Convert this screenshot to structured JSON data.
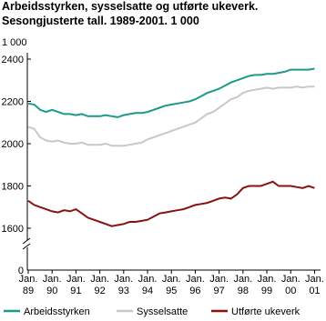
{
  "chart_data": {
    "type": "line",
    "title": "Arbeidsstyrken, sysselsatte og utførte ukeverk.",
    "subtitle": "Sesongjusterte tall. 1989-2001. 1 000",
    "y_unit": "1 000",
    "x": [
      "1989-01",
      "1989-04",
      "1989-07",
      "1989-10",
      "1990-01",
      "1990-04",
      "1990-07",
      "1990-10",
      "1991-01",
      "1991-04",
      "1991-07",
      "1991-10",
      "1992-01",
      "1992-04",
      "1992-07",
      "1992-10",
      "1993-01",
      "1993-04",
      "1993-07",
      "1993-10",
      "1994-01",
      "1994-04",
      "1994-07",
      "1994-10",
      "1995-01",
      "1995-04",
      "1995-07",
      "1995-10",
      "1996-01",
      "1996-04",
      "1996-07",
      "1996-10",
      "1997-01",
      "1997-04",
      "1997-07",
      "1997-10",
      "1998-01",
      "1998-04",
      "1998-07",
      "1998-10",
      "1999-01",
      "1999-04",
      "1999-07",
      "1999-10",
      "2000-01",
      "2000-04",
      "2000-07",
      "2000-10",
      "2001-01"
    ],
    "xlim": [
      "1989-01",
      "2001-04"
    ],
    "xticks": [
      {
        "value": "1989-01",
        "label": "Jan. 89"
      },
      {
        "value": "1990-01",
        "label": "Jan. 90"
      },
      {
        "value": "1991-01",
        "label": "Jan. 91"
      },
      {
        "value": "1992-01",
        "label": "Jan. 92"
      },
      {
        "value": "1993-01",
        "label": "Jan. 93"
      },
      {
        "value": "1994-01",
        "label": "Jan. 94"
      },
      {
        "value": "1995-01",
        "label": "Jan. 95"
      },
      {
        "value": "1996-01",
        "label": "Jan. 96"
      },
      {
        "value": "1997-01",
        "label": "Jan. 97"
      },
      {
        "value": "1998-01",
        "label": "Jan. 98"
      },
      {
        "value": "1999-01",
        "label": "Jan. 99"
      },
      {
        "value": "2000-01",
        "label": "Jan. 00"
      },
      {
        "value": "2001-01",
        "label": "Jan. 01"
      }
    ],
    "ylim": [
      0,
      2400
    ],
    "axis_break": [
      0,
      1600
    ],
    "yticks": [
      0,
      1600,
      1800,
      2000,
      2200,
      2400
    ],
    "grid": false,
    "legend": "bottom",
    "series": [
      {
        "name": "Arbeidsstyrken",
        "color": "#1a9a8a",
        "values": [
          2190,
          2185,
          2160,
          2150,
          2160,
          2150,
          2140,
          2140,
          2135,
          2140,
          2130,
          2130,
          2130,
          2135,
          2130,
          2125,
          2135,
          2140,
          2145,
          2145,
          2150,
          2160,
          2170,
          2180,
          2185,
          2190,
          2195,
          2200,
          2210,
          2225,
          2240,
          2250,
          2260,
          2275,
          2290,
          2300,
          2310,
          2320,
          2325,
          2325,
          2330,
          2330,
          2335,
          2340,
          2350,
          2350,
          2350,
          2350,
          2355
        ]
      },
      {
        "name": "Sysselsatte",
        "color": "#c8c8c8",
        "values": [
          2080,
          2070,
          2030,
          2015,
          2010,
          2015,
          2005,
          2000,
          2000,
          2005,
          1995,
          1995,
          1995,
          2000,
          1990,
          1990,
          1990,
          1995,
          2000,
          2005,
          2020,
          2030,
          2040,
          2050,
          2060,
          2070,
          2080,
          2090,
          2100,
          2120,
          2140,
          2150,
          2170,
          2190,
          2210,
          2220,
          2240,
          2250,
          2255,
          2260,
          2265,
          2260,
          2265,
          2265,
          2265,
          2270,
          2265,
          2270,
          2270
        ]
      },
      {
        "name": "Utførte ukeverk",
        "color": "#8b1010",
        "values": [
          1730,
          1710,
          1700,
          1690,
          1680,
          1675,
          1685,
          1680,
          1690,
          1670,
          1650,
          1640,
          1630,
          1620,
          1610,
          1615,
          1620,
          1630,
          1630,
          1635,
          1640,
          1655,
          1670,
          1675,
          1680,
          1685,
          1690,
          1700,
          1710,
          1715,
          1720,
          1730,
          1740,
          1745,
          1740,
          1760,
          1790,
          1800,
          1800,
          1800,
          1810,
          1820,
          1800,
          1800,
          1800,
          1795,
          1790,
          1800,
          1790
        ]
      }
    ]
  }
}
